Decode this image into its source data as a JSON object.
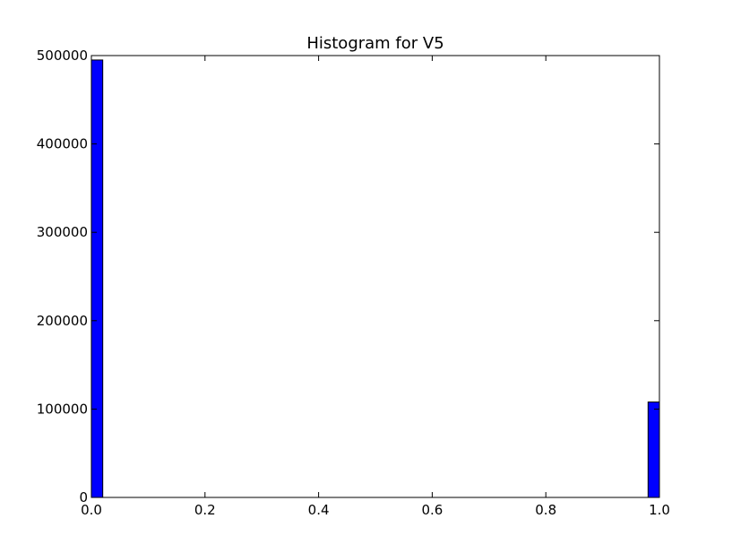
{
  "chart_data": {
    "type": "bar",
    "title": "Histogram for V5",
    "xlabel": "",
    "ylabel": "",
    "xlim": [
      0.0,
      1.0
    ],
    "ylim": [
      0,
      500000
    ],
    "grid": false,
    "bar_color": "#0000ff",
    "bar_edge_color": "#000000",
    "bins": [
      {
        "x_start": 0.0,
        "x_end": 0.02,
        "value": 495000
      },
      {
        "x_start": 0.98,
        "x_end": 1.0,
        "value": 108000
      }
    ],
    "x_ticks": [
      {
        "value": 0.0,
        "label": "0.0"
      },
      {
        "value": 0.2,
        "label": "0.2"
      },
      {
        "value": 0.4,
        "label": "0.4"
      },
      {
        "value": 0.6,
        "label": "0.6"
      },
      {
        "value": 0.8,
        "label": "0.8"
      },
      {
        "value": 1.0,
        "label": "1.0"
      }
    ],
    "y_ticks": [
      {
        "value": 0,
        "label": "0"
      },
      {
        "value": 100000,
        "label": "100000"
      },
      {
        "value": 200000,
        "label": "200000"
      },
      {
        "value": 300000,
        "label": "300000"
      },
      {
        "value": 400000,
        "label": "400000"
      },
      {
        "value": 500000,
        "label": "500000"
      }
    ]
  }
}
